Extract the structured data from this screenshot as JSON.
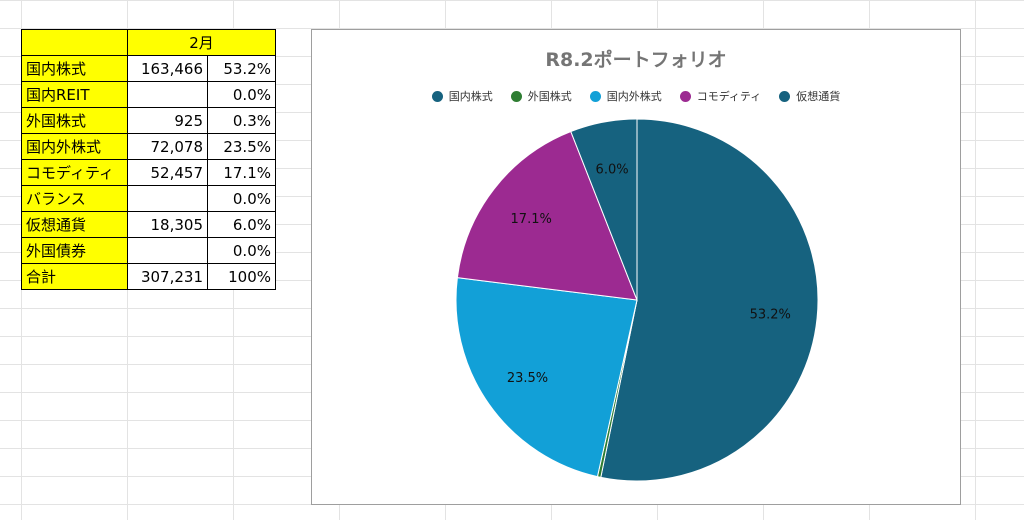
{
  "table": {
    "header": "2月",
    "rows": [
      {
        "label": "国内株式",
        "value": "163,466",
        "pct": "53.2%"
      },
      {
        "label": "国内REIT",
        "value": "",
        "pct": "0.0%"
      },
      {
        "label": "外国株式",
        "value": "925",
        "pct": "0.3%"
      },
      {
        "label": "国内外株式",
        "value": "72,078",
        "pct": "23.5%"
      },
      {
        "label": "コモディティ",
        "value": "52,457",
        "pct": "17.1%"
      },
      {
        "label": "バランス",
        "value": "",
        "pct": "0.0%"
      },
      {
        "label": "仮想通貨",
        "value": "18,305",
        "pct": "6.0%"
      },
      {
        "label": "外国債券",
        "value": "",
        "pct": "0.0%"
      },
      {
        "label": "合計",
        "value": "307,231",
        "pct": "100%"
      }
    ]
  },
  "chart_data": {
    "type": "pie",
    "title": "R8.2ポートフォリオ",
    "legend_position": "top",
    "slices": [
      {
        "name": "国内株式",
        "value": 163466,
        "label": "53.2%",
        "color": "#16627f"
      },
      {
        "name": "外国株式",
        "value": 925,
        "label": "",
        "color": "#2e7d32"
      },
      {
        "name": "国内外株式",
        "value": 72078,
        "label": "23.5%",
        "color": "#12a0d7"
      },
      {
        "name": "コモディティ",
        "value": 52457,
        "label": "17.1%",
        "color": "#9c2a91"
      },
      {
        "name": "仮想通貨",
        "value": 18305,
        "label": "6.0%",
        "color": "#16627f"
      }
    ]
  }
}
